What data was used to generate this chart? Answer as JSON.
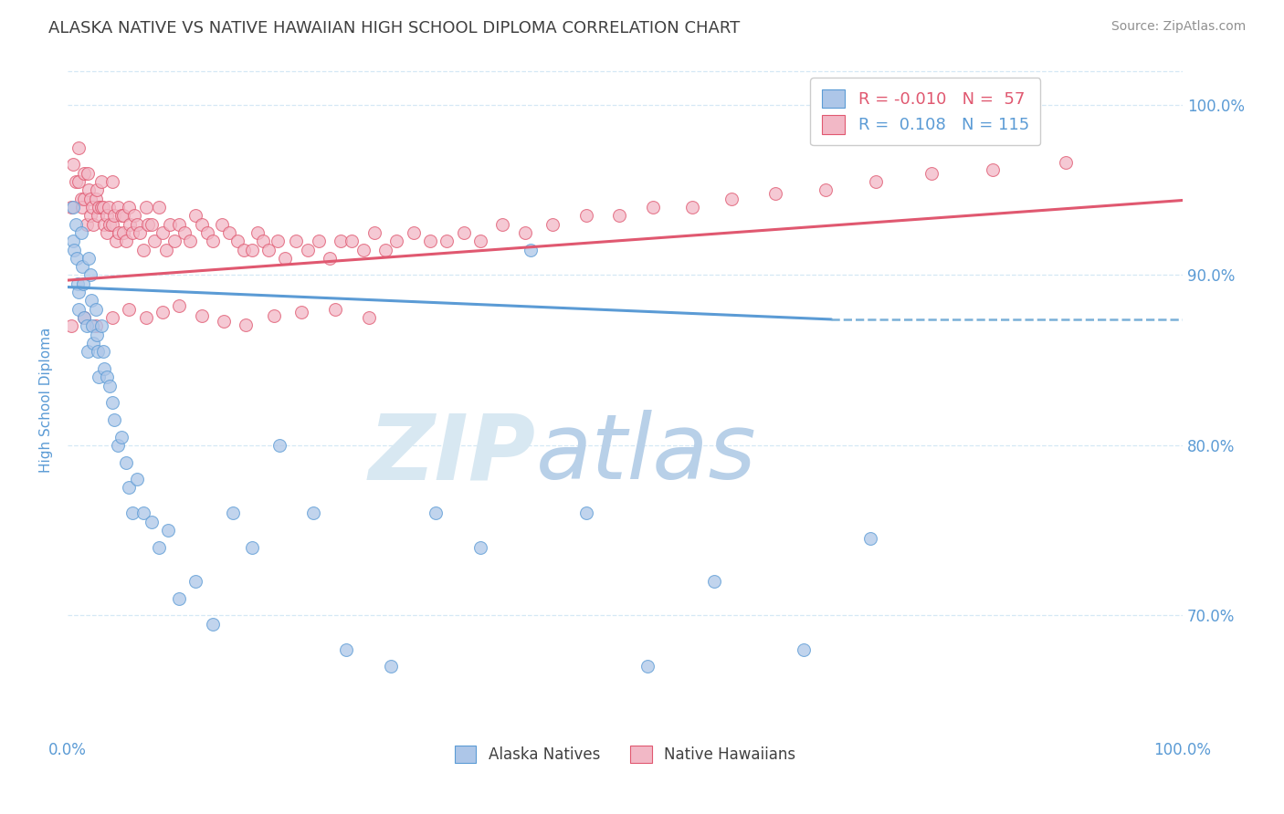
{
  "title": "ALASKA NATIVE VS NATIVE HAWAIIAN HIGH SCHOOL DIPLOMA CORRELATION CHART",
  "source": "Source: ZipAtlas.com",
  "ylabel": "High School Diploma",
  "x_min": 0.0,
  "x_max": 1.0,
  "y_min": 0.628,
  "y_max": 1.025,
  "right_yticks": [
    0.7,
    0.8,
    0.9,
    1.0
  ],
  "right_yticklabels": [
    "70.0%",
    "80.0%",
    "90.0%",
    "100.0%"
  ],
  "xticks": [
    0.0,
    0.1,
    0.2,
    0.3,
    0.4,
    0.5,
    0.6,
    0.7,
    0.8,
    0.9,
    1.0
  ],
  "xticklabels": [
    "0.0%",
    "",
    "",
    "",
    "",
    "",
    "",
    "",
    "",
    "",
    "100.0%"
  ],
  "legend_labels": [
    "Alaska Natives",
    "Native Hawaiians"
  ],
  "R_alaska": -0.01,
  "N_alaska": 57,
  "R_hawaii": 0.108,
  "N_hawaii": 115,
  "color_alaska": "#adc6e8",
  "color_hawaii": "#f2b8c6",
  "line_color_alaska": "#5b9bd5",
  "line_color_hawaii": "#e05870",
  "dashed_line_color": "#7ab0d8",
  "dashed_line_x_start": 0.685,
  "dashed_line_x_end": 1.0,
  "dashed_line_y": 0.874,
  "watermark_color": "#ccdff0",
  "background_color": "#ffffff",
  "grid_color": "#d5e8f5",
  "title_color": "#404040",
  "source_color": "#909090",
  "axis_label_color": "#5b9bd5",
  "alaska_trend_x0": 0.0,
  "alaska_trend_x1": 0.685,
  "alaska_trend_y0": 0.893,
  "alaska_trend_y1": 0.874,
  "hawaii_trend_x0": 0.0,
  "hawaii_trend_x1": 1.0,
  "hawaii_trend_y0": 0.897,
  "hawaii_trend_y1": 0.944,
  "alaska_x": [
    0.005,
    0.005,
    0.006,
    0.007,
    0.008,
    0.009,
    0.01,
    0.01,
    0.012,
    0.013,
    0.014,
    0.015,
    0.017,
    0.018,
    0.019,
    0.02,
    0.021,
    0.022,
    0.023,
    0.025,
    0.026,
    0.027,
    0.028,
    0.03,
    0.032,
    0.033,
    0.035,
    0.038,
    0.04,
    0.042,
    0.045,
    0.048,
    0.052,
    0.055,
    0.058,
    0.062,
    0.068,
    0.075,
    0.082,
    0.09,
    0.1,
    0.115,
    0.13,
    0.148,
    0.165,
    0.19,
    0.22,
    0.25,
    0.29,
    0.33,
    0.37,
    0.415,
    0.465,
    0.52,
    0.58,
    0.66,
    0.72
  ],
  "alaska_y": [
    0.94,
    0.92,
    0.915,
    0.93,
    0.91,
    0.895,
    0.89,
    0.88,
    0.925,
    0.905,
    0.895,
    0.875,
    0.87,
    0.855,
    0.91,
    0.9,
    0.885,
    0.87,
    0.86,
    0.88,
    0.865,
    0.855,
    0.84,
    0.87,
    0.855,
    0.845,
    0.84,
    0.835,
    0.825,
    0.815,
    0.8,
    0.805,
    0.79,
    0.775,
    0.76,
    0.78,
    0.76,
    0.755,
    0.74,
    0.75,
    0.71,
    0.72,
    0.695,
    0.76,
    0.74,
    0.8,
    0.76,
    0.68,
    0.67,
    0.76,
    0.74,
    0.915,
    0.76,
    0.67,
    0.72,
    0.68,
    0.745
  ],
  "hawaii_x": [
    0.003,
    0.005,
    0.007,
    0.01,
    0.01,
    0.012,
    0.013,
    0.015,
    0.015,
    0.017,
    0.018,
    0.019,
    0.02,
    0.02,
    0.022,
    0.023,
    0.025,
    0.026,
    0.027,
    0.028,
    0.03,
    0.03,
    0.032,
    0.033,
    0.035,
    0.035,
    0.037,
    0.038,
    0.04,
    0.04,
    0.042,
    0.043,
    0.045,
    0.046,
    0.048,
    0.05,
    0.05,
    0.052,
    0.055,
    0.056,
    0.058,
    0.06,
    0.062,
    0.065,
    0.068,
    0.07,
    0.072,
    0.075,
    0.078,
    0.082,
    0.085,
    0.088,
    0.092,
    0.096,
    0.1,
    0.105,
    0.11,
    0.115,
    0.12,
    0.125,
    0.13,
    0.138,
    0.145,
    0.152,
    0.158,
    0.165,
    0.17,
    0.175,
    0.18,
    0.188,
    0.195,
    0.205,
    0.215,
    0.225,
    0.235,
    0.245,
    0.255,
    0.265,
    0.275,
    0.285,
    0.295,
    0.31,
    0.325,
    0.34,
    0.355,
    0.37,
    0.39,
    0.41,
    0.435,
    0.465,
    0.495,
    0.525,
    0.56,
    0.595,
    0.635,
    0.68,
    0.725,
    0.775,
    0.83,
    0.895,
    0.003,
    0.015,
    0.025,
    0.04,
    0.055,
    0.07,
    0.085,
    0.1,
    0.12,
    0.14,
    0.16,
    0.185,
    0.21,
    0.24,
    0.27
  ],
  "hawaii_y": [
    0.94,
    0.965,
    0.955,
    0.975,
    0.955,
    0.945,
    0.94,
    0.96,
    0.945,
    0.93,
    0.96,
    0.95,
    0.945,
    0.935,
    0.94,
    0.93,
    0.945,
    0.95,
    0.935,
    0.94,
    0.955,
    0.94,
    0.94,
    0.93,
    0.935,
    0.925,
    0.94,
    0.93,
    0.955,
    0.93,
    0.935,
    0.92,
    0.94,
    0.925,
    0.935,
    0.935,
    0.925,
    0.92,
    0.94,
    0.93,
    0.925,
    0.935,
    0.93,
    0.925,
    0.915,
    0.94,
    0.93,
    0.93,
    0.92,
    0.94,
    0.925,
    0.915,
    0.93,
    0.92,
    0.93,
    0.925,
    0.92,
    0.935,
    0.93,
    0.925,
    0.92,
    0.93,
    0.925,
    0.92,
    0.915,
    0.915,
    0.925,
    0.92,
    0.915,
    0.92,
    0.91,
    0.92,
    0.915,
    0.92,
    0.91,
    0.92,
    0.92,
    0.915,
    0.925,
    0.915,
    0.92,
    0.925,
    0.92,
    0.92,
    0.925,
    0.92,
    0.93,
    0.925,
    0.93,
    0.935,
    0.935,
    0.94,
    0.94,
    0.945,
    0.948,
    0.95,
    0.955,
    0.96,
    0.962,
    0.966,
    0.87,
    0.875,
    0.87,
    0.875,
    0.88,
    0.875,
    0.878,
    0.882,
    0.876,
    0.873,
    0.871,
    0.876,
    0.878,
    0.88,
    0.875
  ]
}
